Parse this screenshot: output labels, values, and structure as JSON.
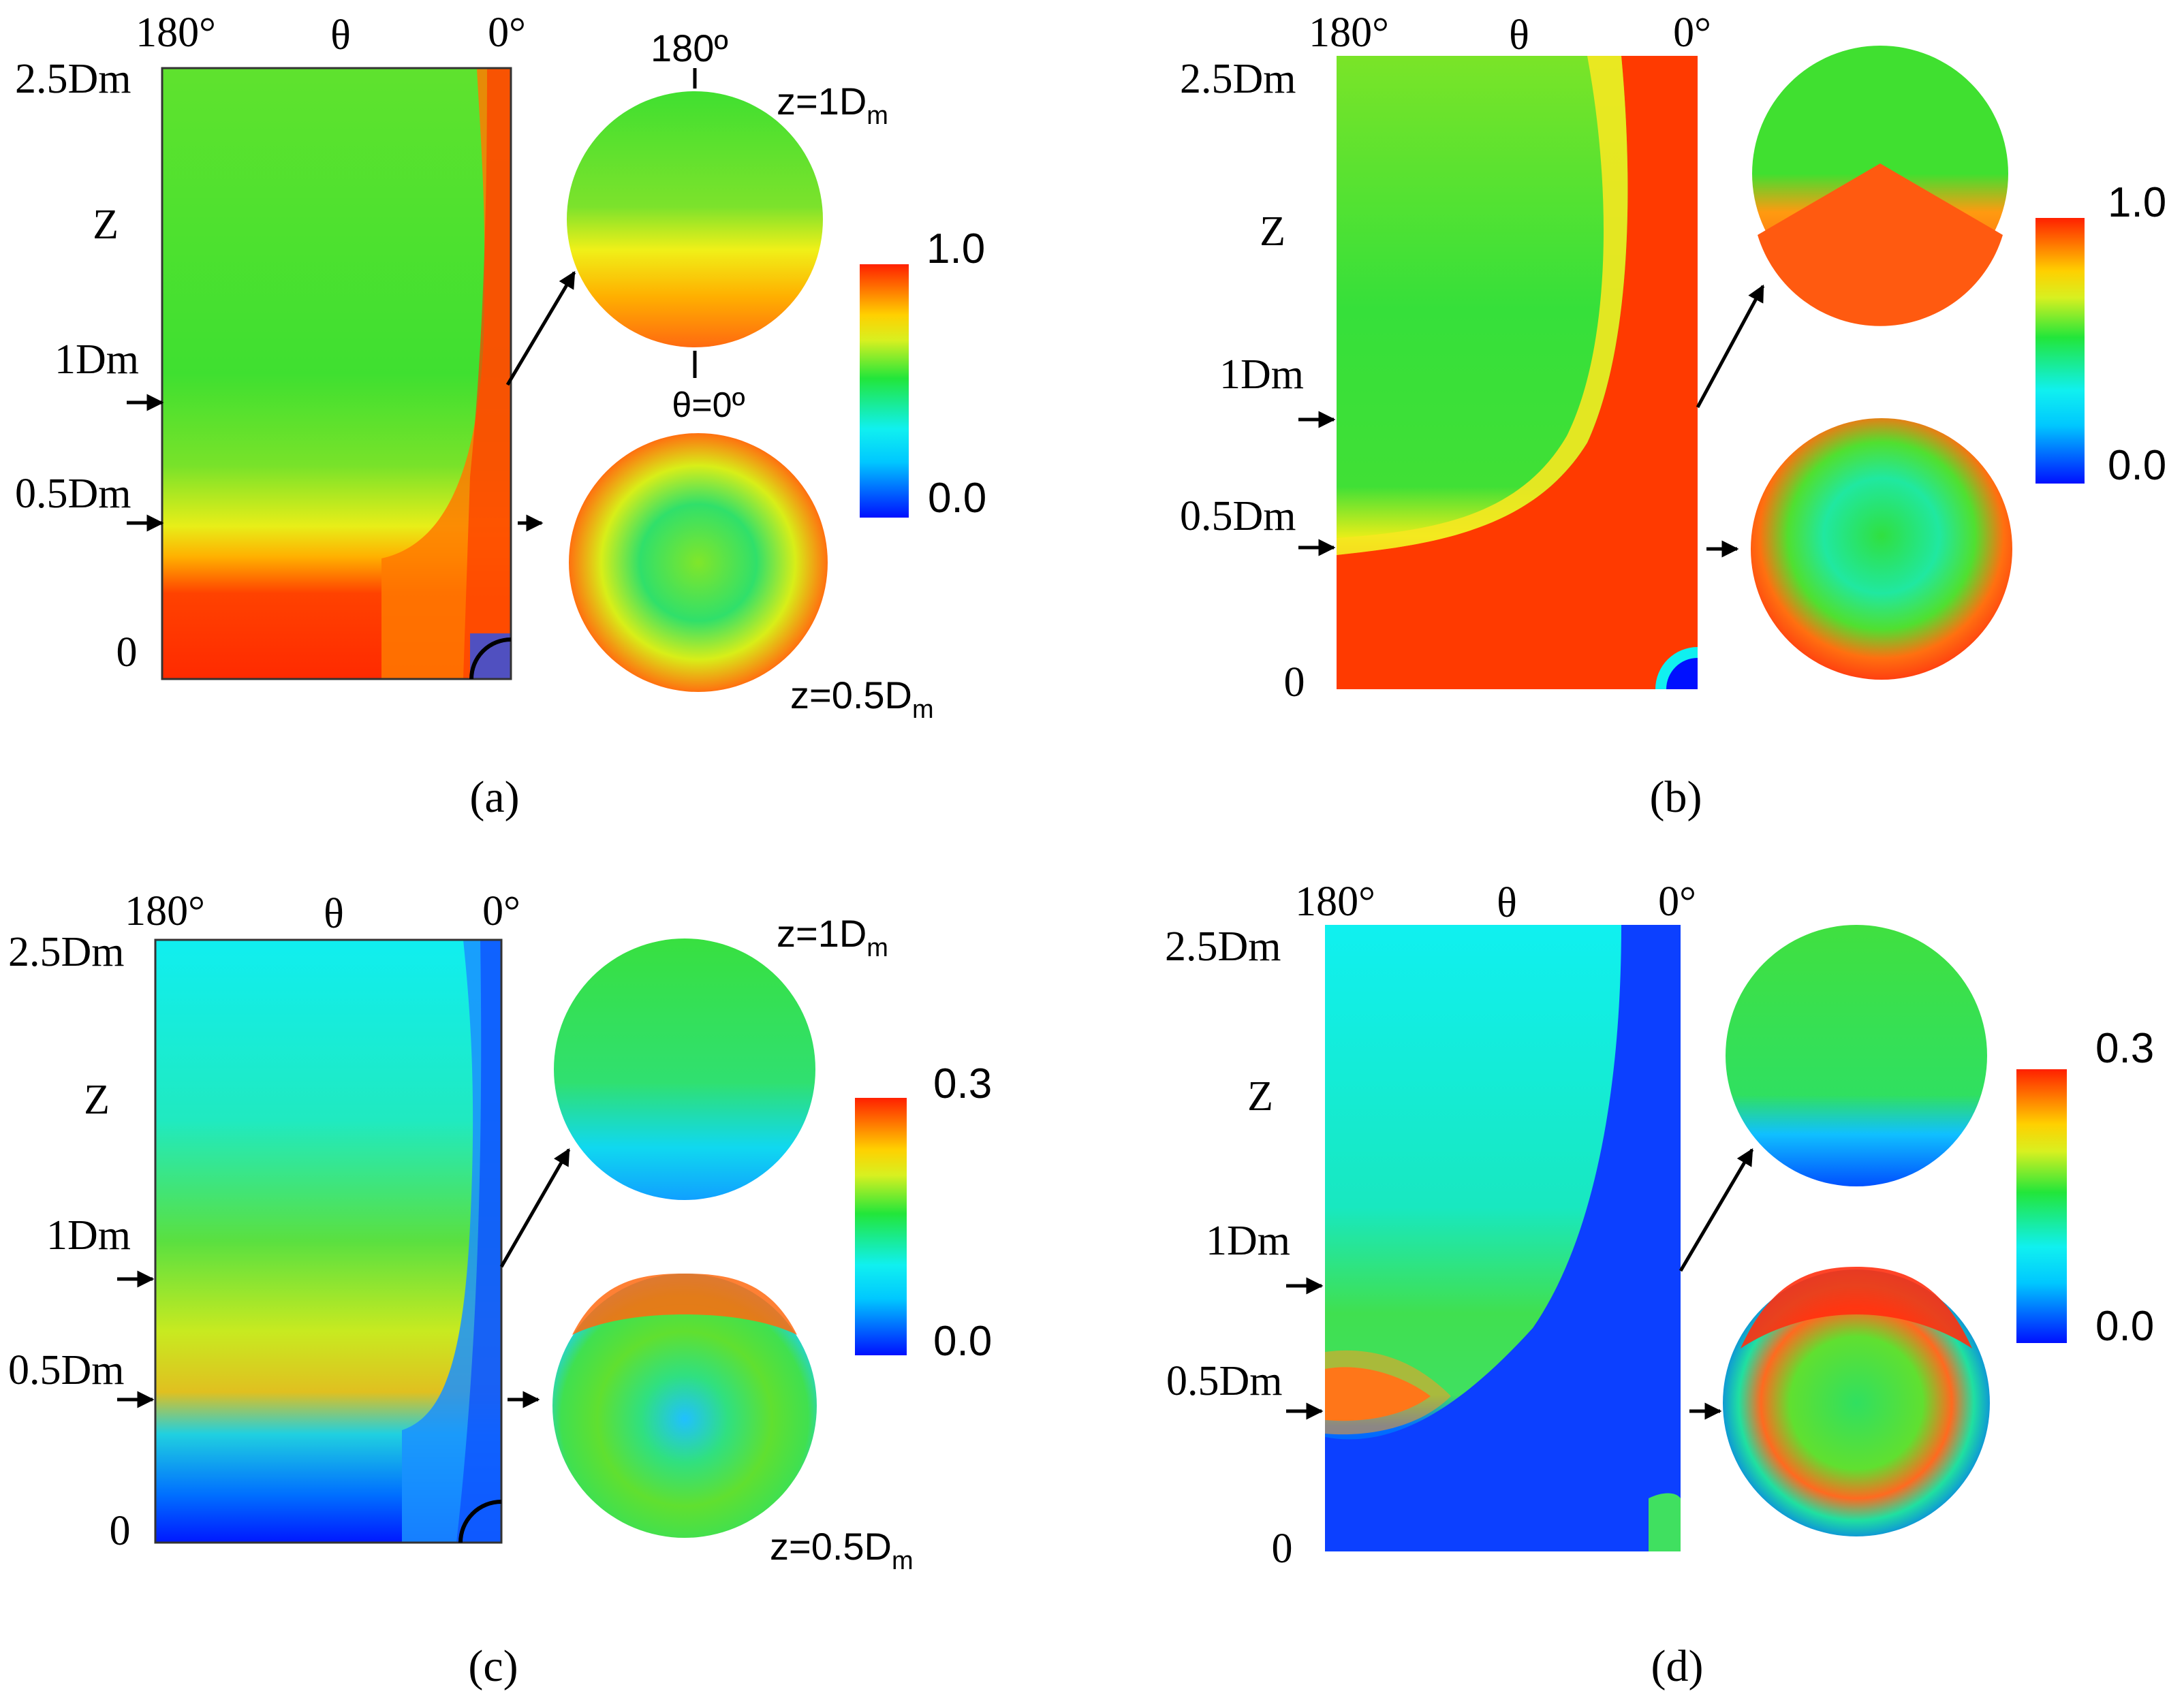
{
  "common": {
    "theta_label": "θ",
    "z_label": "Z",
    "angle_180": "180°",
    "angle_0": "0°",
    "tick_25": "2.5Dm",
    "tick_1": "1Dm",
    "tick_05": "0.5Dm",
    "tick_0": "0"
  },
  "annot_a": {
    "circle_top": "180º",
    "circle_bottom": "θ=0º"
  },
  "panels": [
    {
      "caption": "(a)",
      "colorbar": {
        "max": "1.0",
        "min": "0.0"
      },
      "slice_top": {
        "prefix": "z=1D",
        "sub": "m"
      },
      "slice_bottom": {
        "prefix": "z=0.5D",
        "sub": "m"
      }
    },
    {
      "caption": "(b)",
      "colorbar": {
        "max": "1.0",
        "min": "0.0"
      },
      "slice_top": {
        "prefix": "",
        "sub": ""
      },
      "slice_bottom": {
        "prefix": "",
        "sub": ""
      }
    },
    {
      "caption": "(c)",
      "colorbar": {
        "max": "0.3",
        "min": "0.0"
      },
      "slice_top": {
        "prefix": "z=1D",
        "sub": "m"
      },
      "slice_bottom": {
        "prefix": "z=0.5D",
        "sub": "m"
      }
    },
    {
      "caption": "(d)",
      "colorbar": {
        "max": "0.3",
        "min": "0.0"
      },
      "slice_top": {
        "prefix": "",
        "sub": ""
      },
      "slice_bottom": {
        "prefix": "",
        "sub": ""
      }
    }
  ],
  "colors": {
    "red": "#ff2a00",
    "orange": "#ff8a00",
    "yellow": "#f2ee10",
    "green": "#22e63a",
    "cyan": "#10f0f0",
    "blue": "#0010ff"
  }
}
